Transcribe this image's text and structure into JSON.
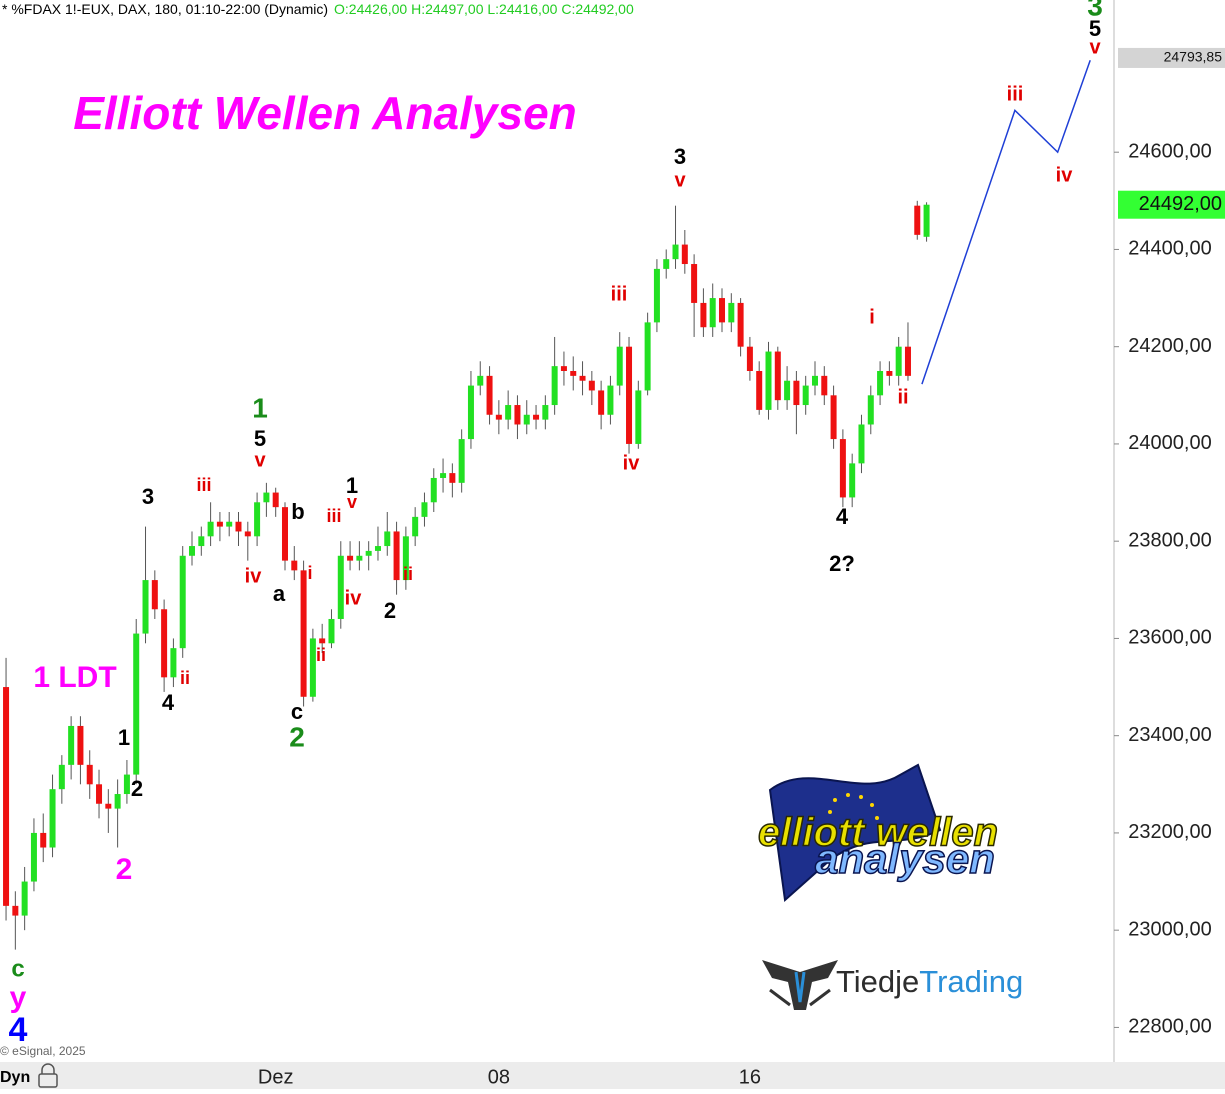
{
  "chart_data": {
    "type": "candlestick",
    "title": "Elliott Wellen Analysen",
    "header": {
      "symbol": "* %FDAX 1!-EUX, DAX, 180, 01:10-22:00 (Dynamic)",
      "ohlc": "O:24426,00 H:24497,00 L:24416,00 C:24492,00"
    },
    "categories": [
      null,
      null,
      null,
      null,
      null,
      null,
      null,
      null,
      null,
      null,
      null,
      null,
      null,
      null,
      null,
      null,
      null,
      null,
      null,
      null,
      null,
      null,
      null,
      null,
      null,
      null,
      null,
      null,
      null,
      "Dez",
      null,
      null,
      null,
      null,
      null,
      null,
      null,
      null,
      null,
      null,
      null,
      null,
      null,
      null,
      null,
      null,
      null,
      null,
      null,
      null,
      null,
      null,
      null,
      "08",
      null,
      null,
      null,
      null,
      null,
      null,
      null,
      null,
      null,
      null,
      null,
      null,
      null,
      null,
      null,
      null,
      null,
      null,
      null,
      null,
      null,
      null,
      null,
      null,
      null,
      null,
      "16",
      null,
      null,
      null,
      null,
      null,
      null,
      null,
      null,
      null,
      null,
      null,
      null,
      null,
      null,
      null,
      null,
      null,
      null,
      null
    ],
    "open": [
      23500,
      23050,
      23030,
      23100,
      23200,
      23170,
      23290,
      23340,
      23420,
      23340,
      23300,
      23260,
      23250,
      23280,
      23320,
      23610,
      23720,
      23660,
      23520,
      23580,
      23770,
      23790,
      23810,
      23840,
      23830,
      23840,
      23820,
      23810,
      23880,
      23900,
      23870,
      23760,
      23740,
      23480,
      23600,
      23590,
      23640,
      23770,
      23760,
      23770,
      23780,
      23790,
      23820,
      23720,
      23810,
      23850,
      23880,
      23930,
      23940,
      23920,
      24010,
      24120,
      24140,
      24060,
      24050,
      24080,
      24040,
      24060,
      24050,
      24080,
      24160,
      24150,
      24140,
      24130,
      24110,
      24060,
      24120,
      24200,
      24000,
      24110,
      24250,
      24360,
      24380,
      24410,
      24370,
      24290,
      24240,
      24300,
      24250,
      24290,
      24200,
      24150,
      24070,
      24190,
      24090,
      24130,
      24080,
      24120,
      24140,
      24100,
      24010,
      23890,
      23960,
      24040,
      24100,
      24150,
      24140,
      24200,
      24490,
      24426
    ],
    "high": [
      23560,
      23080,
      23130,
      23230,
      23240,
      23320,
      23360,
      23440,
      23440,
      23370,
      23330,
      23290,
      23310,
      23350,
      23640,
      23830,
      23740,
      23680,
      23600,
      23790,
      23820,
      23830,
      23880,
      23860,
      23860,
      23860,
      23840,
      23900,
      23920,
      23910,
      23880,
      23790,
      23760,
      23620,
      23630,
      23660,
      23800,
      23800,
      23800,
      23800,
      23830,
      23860,
      23840,
      23830,
      23870,
      23900,
      23950,
      23970,
      23960,
      24030,
      24150,
      24170,
      24160,
      24090,
      24110,
      24100,
      24090,
      24080,
      24100,
      24220,
      24190,
      24180,
      24170,
      24150,
      24130,
      24140,
      24230,
      24220,
      24130,
      24270,
      24380,
      24400,
      24490,
      24440,
      24390,
      24320,
      24330,
      24320,
      24310,
      24300,
      24220,
      24170,
      24210,
      24200,
      24160,
      24150,
      24140,
      24170,
      24160,
      24120,
      24030,
      23980,
      24060,
      24120,
      24170,
      24170,
      24220,
      24250,
      24500,
      24497
    ],
    "low": [
      23020,
      22960,
      23000,
      23080,
      23140,
      23150,
      23260,
      23310,
      23300,
      23270,
      23230,
      23200,
      23170,
      23260,
      23300,
      23590,
      23640,
      23490,
      23500,
      23560,
      23750,
      23770,
      23790,
      23800,
      23810,
      23790,
      23760,
      23790,
      23850,
      23850,
      23740,
      23720,
      23460,
      23470,
      23570,
      23580,
      23620,
      23740,
      23740,
      23740,
      23760,
      23770,
      23690,
      23700,
      23790,
      23830,
      23860,
      23900,
      23890,
      23900,
      23990,
      24100,
      24040,
      24020,
      24030,
      24010,
      24020,
      24030,
      24030,
      24060,
      24120,
      24110,
      24100,
      24080,
      24030,
      24040,
      24100,
      23980,
      23990,
      24100,
      24230,
      24340,
      24360,
      24350,
      24220,
      24220,
      24220,
      24230,
      24230,
      24180,
      24130,
      24060,
      24050,
      24070,
      24070,
      24020,
      24060,
      24100,
      24080,
      23990,
      23870,
      23870,
      23940,
      24020,
      24080,
      24120,
      24120,
      24130,
      24420,
      24416
    ],
    "close": [
      23050,
      23030,
      23100,
      23200,
      23170,
      23290,
      23340,
      23420,
      23340,
      23300,
      23260,
      23250,
      23280,
      23320,
      23610,
      23720,
      23660,
      23520,
      23580,
      23770,
      23790,
      23810,
      23840,
      23830,
      23840,
      23820,
      23810,
      23880,
      23900,
      23870,
      23760,
      23740,
      23480,
      23600,
      23590,
      23640,
      23770,
      23760,
      23770,
      23780,
      23790,
      23820,
      23720,
      23810,
      23850,
      23880,
      23930,
      23940,
      23920,
      24010,
      24120,
      24140,
      24060,
      24050,
      24080,
      24040,
      24060,
      24050,
      24080,
      24160,
      24150,
      24140,
      24130,
      24110,
      24060,
      24120,
      24200,
      24000,
      24110,
      24250,
      24360,
      24380,
      24410,
      24370,
      24290,
      24240,
      24300,
      24250,
      24290,
      24200,
      24150,
      24070,
      24190,
      24090,
      24130,
      24080,
      24120,
      24140,
      24100,
      24010,
      23890,
      23960,
      24040,
      24100,
      24150,
      24140,
      24200,
      24140,
      24430,
      24492
    ],
    "up_color": "#22e022",
    "down_color": "#ee1111",
    "xlim": [
      -0.65,
      119.05
    ],
    "ylim": [
      22733,
      24913
    ],
    "yticks": [
      {
        "value": 22800,
        "label": "22800,00"
      },
      {
        "value": 23000,
        "label": "23000,00"
      },
      {
        "value": 23200,
        "label": "23200,00"
      },
      {
        "value": 23400,
        "label": "23400,00"
      },
      {
        "value": 23600,
        "label": "23600,00"
      },
      {
        "value": 23800,
        "label": "23800,00"
      },
      {
        "value": 24000,
        "label": "24000,00"
      },
      {
        "value": 24200,
        "label": "24200,00"
      },
      {
        "value": 24400,
        "label": "24400,00"
      },
      {
        "value": 24600,
        "label": "24600,00"
      }
    ],
    "price_markers": [
      {
        "value": 24793.85,
        "label": "24793,85",
        "color": "#d4d4d4"
      },
      {
        "value": 24492,
        "label": "24492,00",
        "color": "#33ff33"
      }
    ],
    "projection": {
      "x": [
        98.5,
        108.5,
        113.1,
        116.6
      ],
      "y": [
        24123,
        24686,
        24600,
        24789
      ],
      "color": "#1f3fd6"
    },
    "annotations": [
      {
        "text": "3",
        "color": "#1a8c1a"
      },
      {
        "text": "5",
        "color": "#000000"
      },
      {
        "text": "v",
        "color": "#e00000"
      },
      {
        "text": "iii",
        "color": "#e00000"
      },
      {
        "text": "iv",
        "color": "#e00000"
      },
      {
        "text": "3",
        "color": "#000000"
      },
      {
        "text": "v",
        "color": "#e00000"
      },
      {
        "text": "iii",
        "color": "#e00000"
      },
      {
        "text": "iv",
        "color": "#e00000"
      },
      {
        "text": "i",
        "color": "#e00000"
      },
      {
        "text": "ii",
        "color": "#e00000"
      },
      {
        "text": "4",
        "color": "#000000"
      },
      {
        "text": "2?",
        "color": "#000000"
      },
      {
        "text": "1",
        "color": "#1a8c1a"
      },
      {
        "text": "5",
        "color": "#000000"
      },
      {
        "text": "v",
        "color": "#e00000"
      },
      {
        "text": "3",
        "color": "#000000"
      },
      {
        "text": "iii",
        "color": "#e00000"
      },
      {
        "text": "iv",
        "color": "#e00000"
      },
      {
        "text": "b",
        "color": "#000000"
      },
      {
        "text": "a",
        "color": "#000000"
      },
      {
        "text": "c",
        "color": "#000000"
      },
      {
        "text": "2",
        "color": "#1a8c1a"
      },
      {
        "text": "1",
        "color": "#000000"
      },
      {
        "text": "v",
        "color": "#e00000"
      },
      {
        "text": "iii",
        "color": "#e00000"
      },
      {
        "text": "i",
        "color": "#e00000"
      },
      {
        "text": "iv",
        "color": "#e00000"
      },
      {
        "text": "ii",
        "color": "#e00000"
      },
      {
        "text": "ii",
        "color": "#e00000"
      },
      {
        "text": "2",
        "color": "#000000"
      },
      {
        "text": "ii",
        "color": "#e00000"
      },
      {
        "text": "4",
        "color": "#000000"
      },
      {
        "text": "1 LDT",
        "color": "#ff00ff"
      },
      {
        "text": "1",
        "color": "#000000"
      },
      {
        "text": "2",
        "color": "#000000"
      },
      {
        "text": "2",
        "color": "#ff00ff"
      },
      {
        "text": "c",
        "color": "#1a8c1a"
      },
      {
        "text": "y",
        "color": "#ff00ff"
      },
      {
        "text": "4",
        "color": "#0000ff"
      }
    ],
    "copyright": "© eSignal, 2025",
    "mode": "Dyn"
  },
  "logo": {
    "line1": "elliott wellen",
    "line2": "analysen"
  },
  "brand": {
    "part1": "Tiedje",
    "part2": "Trading"
  }
}
